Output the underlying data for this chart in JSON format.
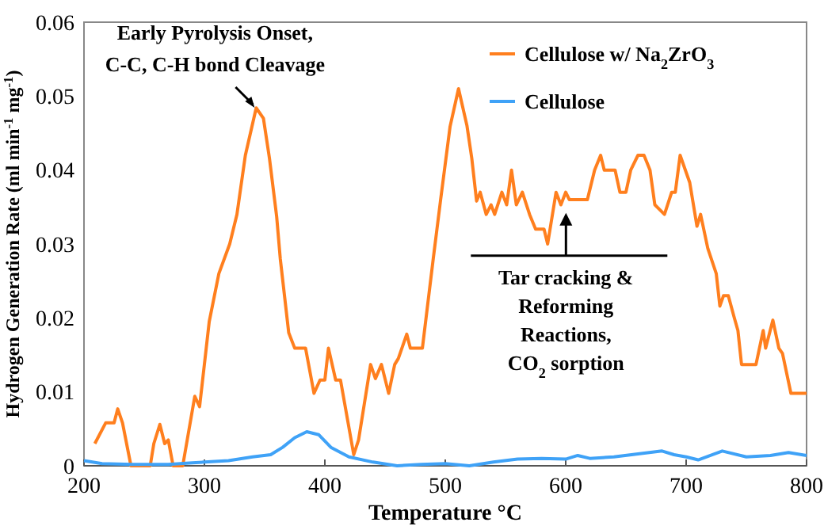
{
  "chart_data": {
    "type": "line",
    "xlabel": "Temperature °C",
    "ylabel": "Hydrogen Generation Rate (ml min$^{-1}$ mg$^{-1}$)",
    "xlim": [
      200,
      800
    ],
    "xticks": [
      200,
      300,
      400,
      500,
      600,
      700,
      800
    ],
    "ylim": [
      0,
      0.06
    ],
    "yticks": [
      0,
      0.01,
      0.02,
      0.03,
      0.04,
      0.05,
      0.06
    ],
    "grid": false,
    "legend": "top right",
    "annotations": [
      {
        "text": "Early Pyrolysis Onset,\nC-C, C-H bond Cleavage",
        "x": 343,
        "y": 0.048
      },
      "Tar cracking &\nReforming\nReactions,\nCO$_{2}$ sorption"
    ],
    "series": [
      {
        "name": "Cellulose w/ Na$_{2}$ZrO$_{3}$",
        "color": "#ff7f1e",
        "x": [
          209,
          218,
          225,
          228,
          232,
          239,
          255,
          258,
          263,
          267,
          270,
          274,
          282,
          292,
          296,
          304,
          312,
          321,
          327,
          334,
          343,
          349,
          354,
          360,
          363,
          370,
          375,
          384,
          391,
          396,
          400,
          403,
          409,
          413,
          424,
          428,
          438,
          442,
          447,
          453,
          458,
          461,
          468,
          471,
          481,
          490,
          496,
          504,
          511,
          518,
          522,
          526,
          529,
          534,
          538,
          541,
          547,
          551,
          555,
          559,
          564,
          570,
          575,
          582,
          585,
          592,
          596,
          600,
          603,
          618,
          624,
          629,
          632,
          641,
          645,
          650,
          654,
          660,
          665,
          670,
          674,
          682,
          688,
          691,
          695,
          703,
          709,
          712,
          718,
          725,
          728,
          731,
          735,
          740,
          743,
          746,
          758,
          764,
          766,
          772,
          777,
          780,
          787,
          800
        ],
        "values": [
          0.003,
          0.0058,
          0.0058,
          0.0077,
          0.0058,
          0,
          0,
          0.003,
          0.0056,
          0.003,
          0.0035,
          0,
          0,
          0.0094,
          0.008,
          0.0195,
          0.026,
          0.03,
          0.034,
          0.042,
          0.0484,
          0.047,
          0.0416,
          0.0337,
          0.028,
          0.018,
          0.0159,
          0.0159,
          0.0098,
          0.0116,
          0.0116,
          0.0159,
          0.0116,
          0.0116,
          0.0015,
          0.0035,
          0.0137,
          0.0118,
          0.0137,
          0.0098,
          0.0137,
          0.0145,
          0.0178,
          0.0159,
          0.0159,
          0.028,
          0.0358,
          0.0459,
          0.051,
          0.046,
          0.0416,
          0.0358,
          0.037,
          0.034,
          0.0353,
          0.034,
          0.037,
          0.0353,
          0.04,
          0.0353,
          0.037,
          0.034,
          0.032,
          0.032,
          0.03,
          0.037,
          0.0353,
          0.037,
          0.036,
          0.036,
          0.04,
          0.042,
          0.04,
          0.04,
          0.037,
          0.037,
          0.04,
          0.042,
          0.042,
          0.04,
          0.0353,
          0.034,
          0.037,
          0.037,
          0.042,
          0.0383,
          0.0324,
          0.034,
          0.0294,
          0.026,
          0.0216,
          0.023,
          0.023,
          0.02,
          0.0183,
          0.0137,
          0.0137,
          0.0183,
          0.0159,
          0.0197,
          0.0159,
          0.0152,
          0.0098,
          0.0098
        ]
      },
      {
        "name": "Cellulose",
        "color": "#3fa2f7",
        "x": [
          200,
          215,
          240,
          270,
          290,
          300,
          320,
          340,
          355,
          365,
          375,
          385,
          395,
          405,
          420,
          440,
          460,
          480,
          500,
          520,
          540,
          560,
          580,
          600,
          610,
          620,
          640,
          660,
          680,
          690,
          700,
          710,
          730,
          750,
          770,
          785,
          800
        ],
        "values": [
          0.0007,
          0.0003,
          0.0002,
          0.0002,
          0.0004,
          0.0005,
          0.0007,
          0.0012,
          0.0015,
          0.0025,
          0.0038,
          0.0046,
          0.0042,
          0.0025,
          0.0012,
          0.0005,
          0,
          0.0002,
          0.0003,
          0,
          0.0005,
          0.0009,
          0.001,
          0.0009,
          0.0014,
          0.001,
          0.0012,
          0.0016,
          0.002,
          0.0015,
          0.0012,
          0.0008,
          0.002,
          0.0012,
          0.0014,
          0.0018,
          0.0014
        ]
      }
    ]
  }
}
